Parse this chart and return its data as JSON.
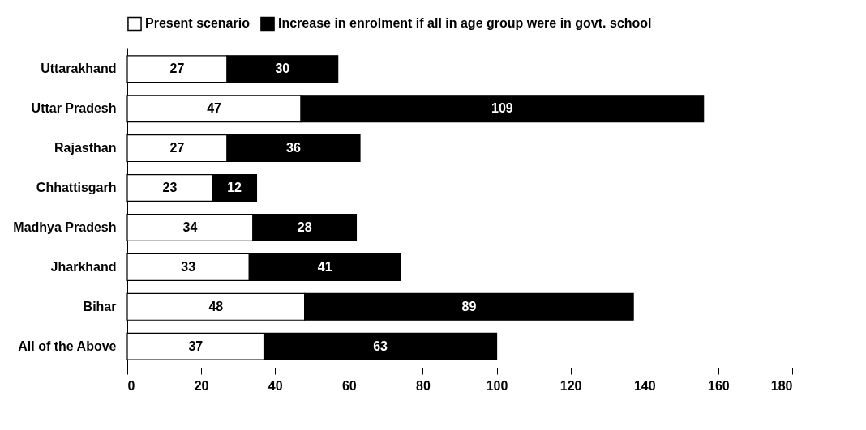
{
  "chart_data": {
    "type": "bar",
    "orientation": "horizontal",
    "stacked": true,
    "data_labels": true,
    "legend": "top",
    "grid": false,
    "categories": [
      "Uttarakhand",
      "Uttar Pradesh",
      "Rajasthan",
      "Chhattisgarh",
      "Madhya Pradesh",
      "Jharkhand",
      "Bihar",
      "All of the Above"
    ],
    "series": [
      {
        "name": "Present scenario",
        "color": "#ffffff",
        "values": [
          27,
          47,
          27,
          23,
          34,
          33,
          48,
          37
        ]
      },
      {
        "name": "Increase in enrolment if all in age group were in govt. school",
        "color": "#000000",
        "values": [
          30,
          109,
          36,
          12,
          28,
          41,
          89,
          63
        ]
      }
    ],
    "xlim": [
      0,
      180
    ],
    "xticks": [
      0,
      20,
      40,
      60,
      80,
      100,
      120,
      140,
      160,
      180
    ]
  }
}
